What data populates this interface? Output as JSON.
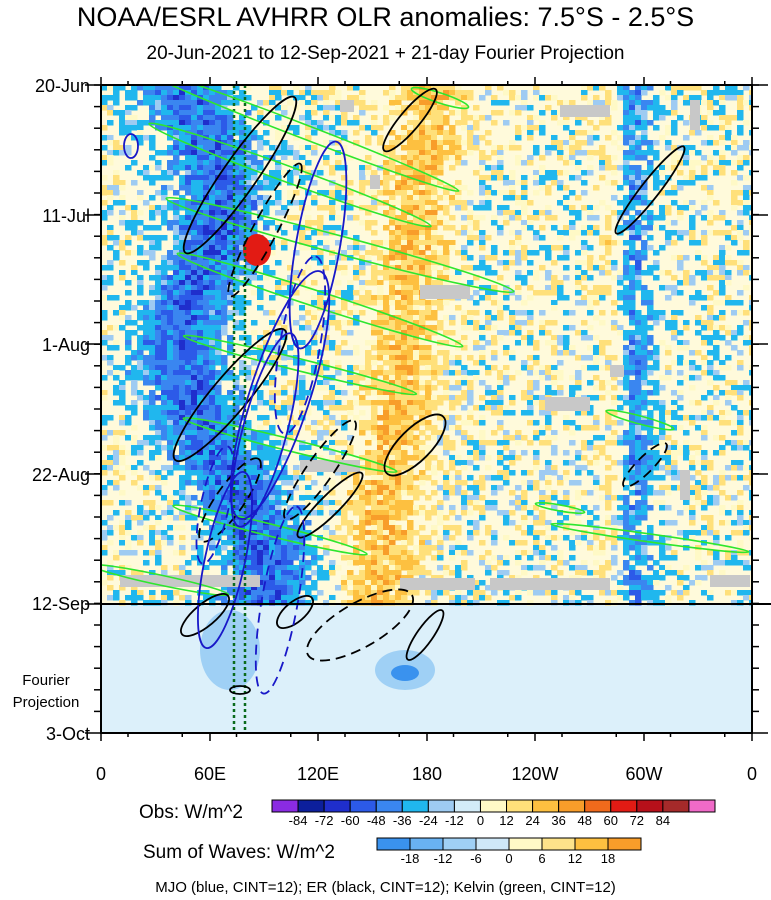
{
  "header": {
    "title": "NOAA/ESRL AVHRR OLR anomalies: 7.5°S - 2.5°S",
    "subtitle": "20-Jun-2021 to 12-Sep-2021 + 21-day Fourier Projection"
  },
  "chart_data": {
    "type": "heatmap",
    "title": "NOAA/ESRL AVHRR OLR anomalies: 7.5°S - 2.5°S",
    "subtitle": "20-Jun-2021 to 12-Sep-2021 + 21-day Fourier Projection",
    "x_tick_labels": [
      "0",
      "60E",
      "120E",
      "180",
      "120W",
      "60W",
      "0"
    ],
    "x_range_deg": [
      0,
      360
    ],
    "y_tick_labels": [
      "20-Jun",
      "11-Jul",
      "1-Aug",
      "22-Aug",
      "12-Sep",
      "3-Oct"
    ],
    "projection_label": "Fourier\nProjection",
    "projection_line1": "Fourier",
    "projection_line2": "Projection",
    "obs_end": "12-Sep",
    "obs_legend": {
      "label": "Obs: W/m^2",
      "levels": [
        -84,
        -72,
        -60,
        -48,
        -36,
        -24,
        -12,
        0,
        12,
        24,
        36,
        48,
        60,
        72,
        84
      ],
      "colors": [
        "#8a2be2",
        "#0c1f9c",
        "#1f2ecc",
        "#2c5ae8",
        "#3a86f0",
        "#20b7ee",
        "#9ecbf2",
        "#d3ecf8",
        "#fff9c6",
        "#ffe07a",
        "#fdc040",
        "#f89d2a",
        "#f06a1c",
        "#e21b14",
        "#b7101a",
        "#a52a2a",
        "#f06ac8"
      ]
    },
    "wave_legend": {
      "label": "Sum of Waves: W/m^2",
      "levels": [
        -18,
        -12,
        -6,
        0,
        6,
        12,
        18
      ],
      "colors": [
        "#3a92ee",
        "#69b2f2",
        "#9fd0f5",
        "#cfe8f8",
        "#fff9c6",
        "#fde38a",
        "#fdc040",
        "#f89d2a"
      ]
    },
    "waves": [
      {
        "name": "MJO",
        "color": "blue",
        "cint": 12
      },
      {
        "name": "ER",
        "color": "black",
        "cint": 12
      },
      {
        "name": "Kelvin",
        "color": "green",
        "cint": 12
      }
    ]
  },
  "footer": "MJO (blue, CINT=12); ER (black, CINT=12); Kelvin (green, CINT=12)"
}
